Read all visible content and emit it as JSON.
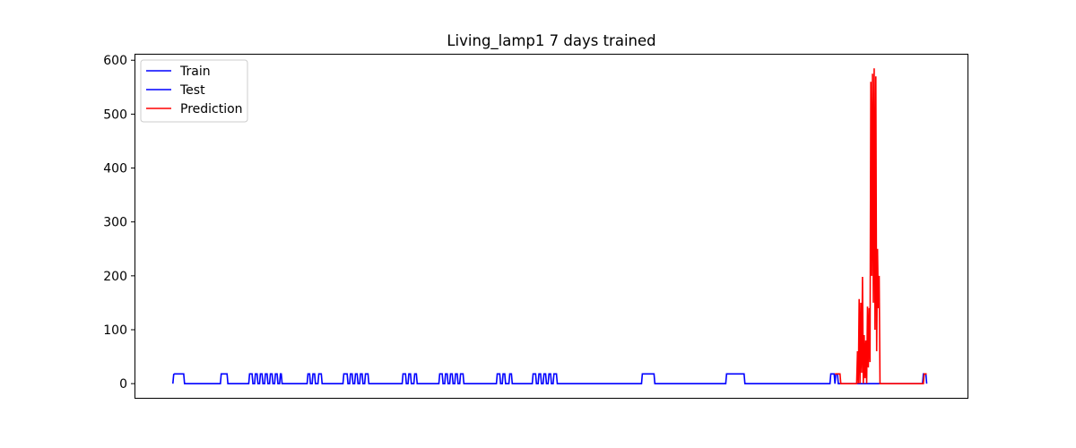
{
  "chart_data": {
    "type": "line",
    "title": "Living_lamp1 7 days trained",
    "xlabel": "",
    "ylabel": "",
    "xlim": [
      0,
      1000
    ],
    "ylim": [
      -28,
      612
    ],
    "y_ticks": [
      0,
      100,
      200,
      300,
      400,
      500,
      600
    ],
    "x_ticks": [],
    "grid": false,
    "legend_position": "top-left",
    "colors": {
      "Train": "#0000ff",
      "Test": "#0000ff",
      "Prediction": "#ff0000"
    },
    "series": [
      {
        "name": "Train",
        "points": [
          [
            46,
            0
          ],
          [
            47,
            17
          ],
          [
            48,
            18
          ],
          [
            59,
            18
          ],
          [
            60,
            0
          ],
          [
            103,
            0
          ],
          [
            104,
            18
          ],
          [
            111,
            18
          ],
          [
            112,
            0
          ],
          [
            137,
            0
          ],
          [
            138,
            18
          ],
          [
            141,
            18
          ],
          [
            142,
            0
          ],
          [
            144,
            0
          ],
          [
            145,
            18
          ],
          [
            147,
            18
          ],
          [
            148,
            0
          ],
          [
            150,
            0
          ],
          [
            151,
            18
          ],
          [
            153,
            18
          ],
          [
            154,
            0
          ],
          [
            156,
            0
          ],
          [
            157,
            18
          ],
          [
            159,
            18
          ],
          [
            160,
            0
          ],
          [
            162,
            0
          ],
          [
            163,
            18
          ],
          [
            165,
            18
          ],
          [
            166,
            0
          ],
          [
            168,
            0
          ],
          [
            169,
            18
          ],
          [
            171,
            18
          ],
          [
            172,
            0
          ],
          [
            174,
            0
          ],
          [
            175,
            18
          ],
          [
            176,
            18
          ],
          [
            177,
            0
          ],
          [
            207,
            0
          ],
          [
            208,
            18
          ],
          [
            210,
            18
          ],
          [
            211,
            0
          ],
          [
            213,
            0
          ],
          [
            214,
            18
          ],
          [
            216,
            18
          ],
          [
            217,
            0
          ],
          [
            220,
            0
          ],
          [
            221,
            18
          ],
          [
            224,
            18
          ],
          [
            225,
            0
          ],
          [
            250,
            0
          ],
          [
            251,
            18
          ],
          [
            255,
            18
          ],
          [
            256,
            0
          ],
          [
            258,
            0
          ],
          [
            259,
            18
          ],
          [
            261,
            18
          ],
          [
            262,
            0
          ],
          [
            264,
            0
          ],
          [
            265,
            18
          ],
          [
            267,
            18
          ],
          [
            268,
            0
          ],
          [
            270,
            0
          ],
          [
            271,
            18
          ],
          [
            273,
            18
          ],
          [
            274,
            0
          ],
          [
            276,
            0
          ],
          [
            277,
            18
          ],
          [
            280,
            18
          ],
          [
            281,
            0
          ],
          [
            321,
            0
          ],
          [
            322,
            18
          ],
          [
            325,
            18
          ],
          [
            326,
            0
          ],
          [
            328,
            0
          ],
          [
            329,
            18
          ],
          [
            331,
            18
          ],
          [
            332,
            0
          ],
          [
            335,
            0
          ],
          [
            336,
            18
          ],
          [
            338,
            18
          ],
          [
            339,
            0
          ],
          [
            365,
            0
          ],
          [
            366,
            18
          ],
          [
            369,
            18
          ],
          [
            370,
            0
          ],
          [
            372,
            0
          ],
          [
            373,
            18
          ],
          [
            375,
            18
          ],
          [
            376,
            0
          ],
          [
            378,
            0
          ],
          [
            379,
            18
          ],
          [
            381,
            18
          ],
          [
            382,
            0
          ],
          [
            384,
            0
          ],
          [
            385,
            18
          ],
          [
            387,
            18
          ],
          [
            388,
            0
          ],
          [
            390,
            0
          ],
          [
            391,
            18
          ],
          [
            394,
            18
          ],
          [
            395,
            0
          ],
          [
            434,
            0
          ],
          [
            435,
            18
          ],
          [
            438,
            18
          ],
          [
            439,
            0
          ],
          [
            441,
            0
          ],
          [
            442,
            18
          ],
          [
            444,
            18
          ],
          [
            445,
            0
          ],
          [
            449,
            0
          ],
          [
            450,
            18
          ],
          [
            452,
            18
          ],
          [
            453,
            0
          ],
          [
            477,
            0
          ],
          [
            478,
            18
          ],
          [
            481,
            18
          ],
          [
            482,
            0
          ],
          [
            484,
            0
          ],
          [
            485,
            18
          ],
          [
            487,
            18
          ],
          [
            488,
            0
          ],
          [
            490,
            0
          ],
          [
            491,
            18
          ],
          [
            493,
            18
          ],
          [
            494,
            0
          ],
          [
            496,
            0
          ],
          [
            497,
            18
          ],
          [
            499,
            18
          ],
          [
            500,
            0
          ],
          [
            502,
            0
          ],
          [
            503,
            18
          ],
          [
            506,
            18
          ],
          [
            507,
            0
          ],
          [
            608,
            0
          ],
          [
            609,
            18
          ],
          [
            623,
            18
          ],
          [
            624,
            0
          ],
          [
            709,
            0
          ],
          [
            710,
            18
          ],
          [
            731,
            18
          ],
          [
            732,
            0
          ],
          [
            834,
            0
          ],
          [
            835,
            18
          ],
          [
            839,
            18
          ],
          [
            840,
            0
          ]
        ]
      },
      {
        "name": "Test",
        "points": [
          [
            840,
            0
          ],
          [
            841,
            18
          ],
          [
            843,
            18
          ],
          [
            844,
            0
          ],
          [
            945,
            0
          ],
          [
            946,
            18
          ],
          [
            949,
            18
          ],
          [
            950,
            0
          ]
        ]
      },
      {
        "name": "Prediction",
        "points": [
          [
            840,
            18
          ],
          [
            846,
            18
          ],
          [
            847,
            0
          ],
          [
            866,
            0
          ],
          [
            867,
            60
          ],
          [
            868,
            0
          ],
          [
            869,
            157
          ],
          [
            870,
            0
          ],
          [
            871,
            150
          ],
          [
            872,
            20
          ],
          [
            873,
            198
          ],
          [
            874,
            0
          ],
          [
            875,
            90
          ],
          [
            876,
            10
          ],
          [
            877,
            80
          ],
          [
            878,
            0
          ],
          [
            879,
            143
          ],
          [
            880,
            30
          ],
          [
            881,
            140
          ],
          [
            882,
            40
          ],
          [
            883,
            560
          ],
          [
            884,
            200
          ],
          [
            885,
            575
          ],
          [
            886,
            150
          ],
          [
            887,
            585
          ],
          [
            888,
            100
          ],
          [
            889,
            570
          ],
          [
            890,
            60
          ],
          [
            891,
            250
          ],
          [
            892,
            140
          ],
          [
            893,
            200
          ],
          [
            894,
            0
          ],
          [
            895,
            0
          ],
          [
            946,
            0
          ],
          [
            947,
            18
          ],
          [
            950,
            18
          ]
        ]
      }
    ]
  }
}
